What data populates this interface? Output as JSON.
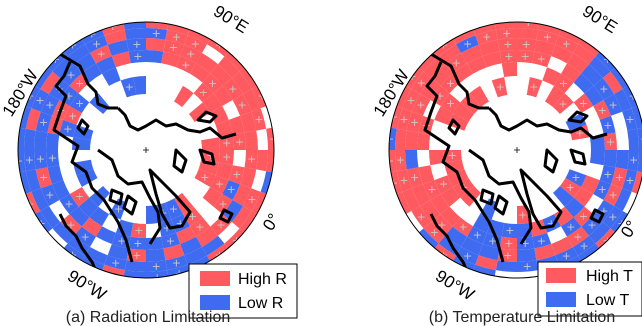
{
  "colors": {
    "high": "#ff5a5f",
    "low": "#3f6bf0",
    "marker": "#c8c8c8",
    "coast": "#000000",
    "background": "#ffffff"
  },
  "panels": [
    {
      "caption": "(a) Radiation Limitation",
      "labels": {
        "lon_180": "180°W",
        "lon_90e": "90°E",
        "lon_0": "0°",
        "lon_90w": "90°W"
      },
      "legend": {
        "high": "High R",
        "low": "Low R"
      }
    },
    {
      "caption": "(b) Temperature Limitation",
      "labels": {
        "lon_180": "180°W",
        "lon_90e": "90°E",
        "lon_0": "0°",
        "lon_90w": "90°W"
      },
      "legend": {
        "high": "High T",
        "low": "Low T"
      }
    }
  ]
}
